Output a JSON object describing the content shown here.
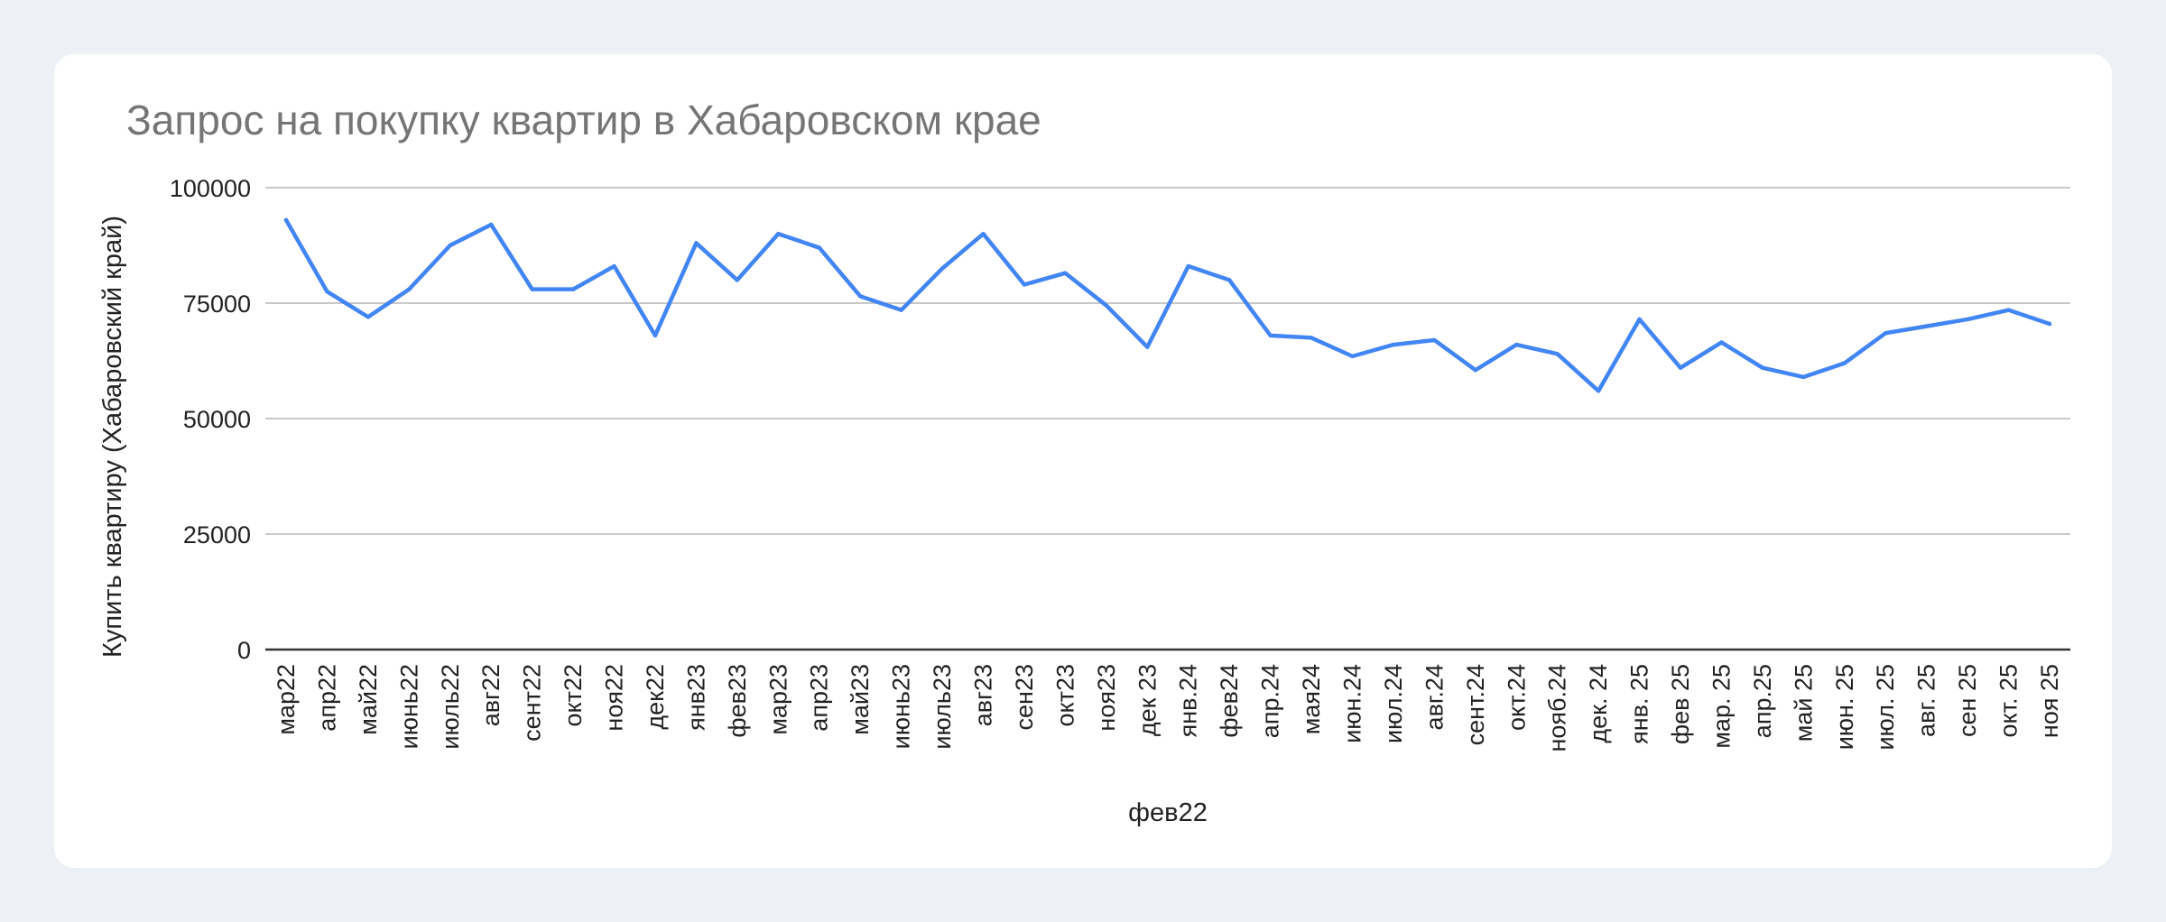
{
  "colors": {
    "series": "#4285f4"
  },
  "chart_data": {
    "type": "line",
    "title": "Запрос на покупку квартир в Хабаровском крае",
    "xlabel": "фев22",
    "ylabel": "Купить квартиру (Хабаровский край)",
    "ylim": [
      0,
      100000
    ],
    "yticks": [
      0,
      25000,
      50000,
      75000,
      100000
    ],
    "grid": true,
    "legend": "none",
    "categories": [
      "мар22",
      "апр22",
      "май22",
      "июнь22",
      "июль22",
      "авг22",
      "сент22",
      "окт22",
      "ноя22",
      "дек22",
      "янв23",
      "фев23",
      "мар23",
      "апр23",
      "май23",
      "июнь23",
      "июль23",
      "авг23",
      "сен23",
      "окт23",
      "ноя23",
      "дек 23",
      "янв.24",
      "фев24",
      "апр.24",
      "мая24",
      "июн.24",
      "июл.24",
      "авг.24",
      "сент.24",
      "окт.24",
      "нояб.24",
      "дек. 24",
      "янв. 25",
      "фев 25",
      "мар. 25",
      "апр.25",
      "май 25",
      "июн. 25",
      "июл. 25",
      "авг. 25",
      "сен 25",
      "окт. 25",
      "ноя 25"
    ],
    "series": [
      {
        "values": [
          93000,
          77500,
          72000,
          78000,
          87500,
          92000,
          78000,
          78000,
          83000,
          68000,
          88000,
          80000,
          90000,
          87000,
          76500,
          73500,
          82500,
          90000,
          79000,
          81500,
          74500,
          65500,
          83000,
          80000,
          68000,
          67500,
          63500,
          66000,
          67000,
          60500,
          66000,
          64000,
          56000,
          71500,
          61000,
          66500,
          61000,
          59000,
          62000,
          68500,
          70000,
          71500,
          73500,
          70500
        ]
      }
    ]
  }
}
